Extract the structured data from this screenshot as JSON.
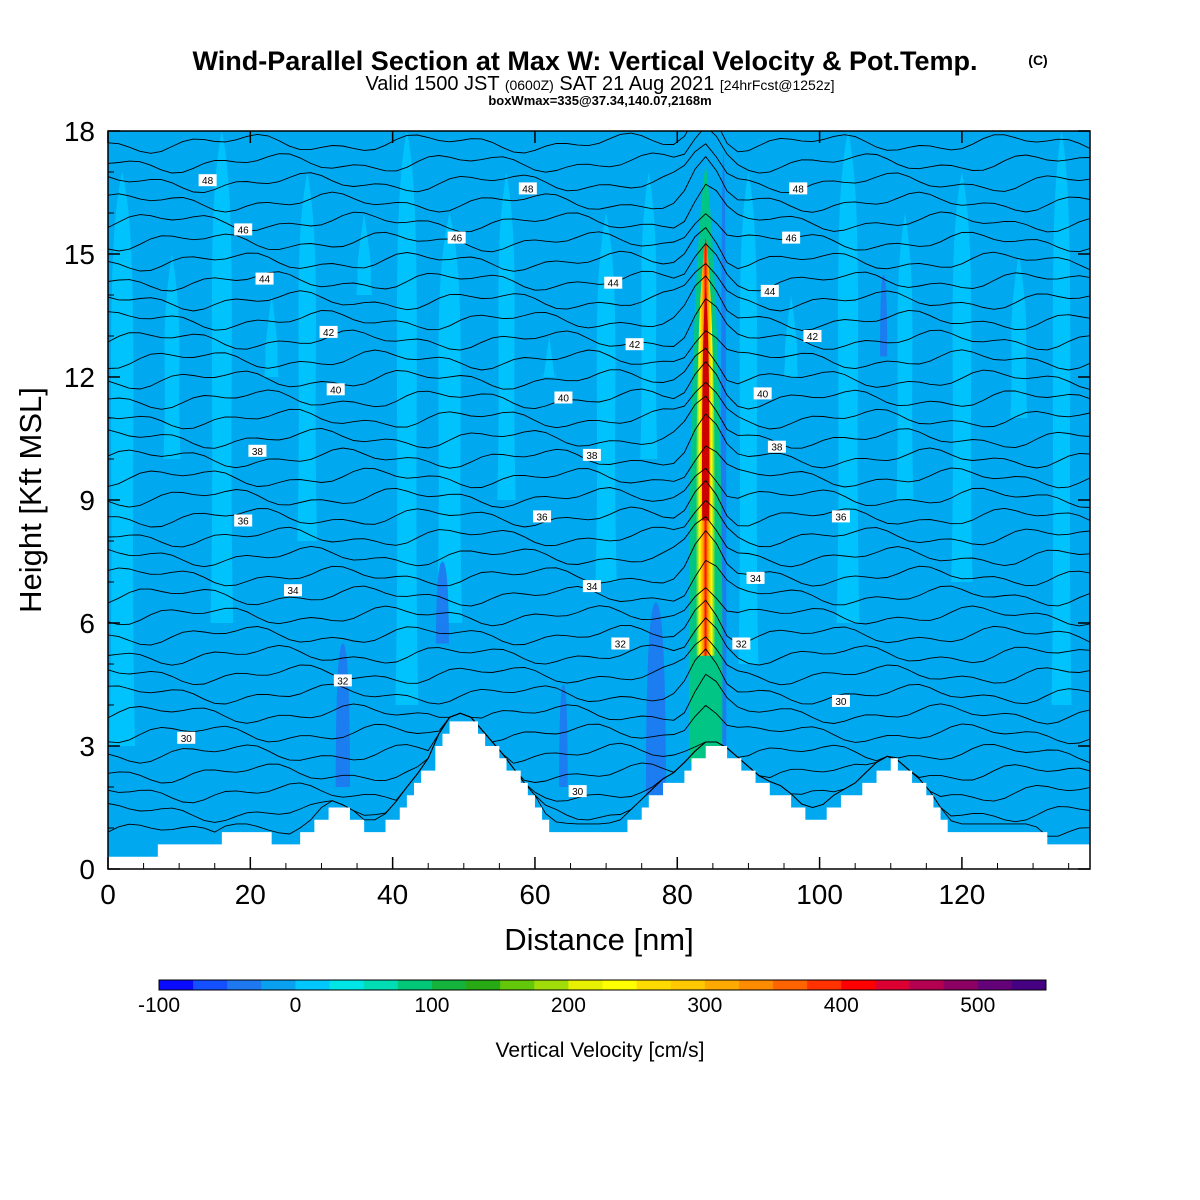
{
  "chart_data": {
    "type": "heatmap",
    "title": "Wind-Parallel Section at Max W: Vertical Velocity & Pot.Temp.",
    "title_mark": "(C)",
    "subtitle": {
      "a": "Valid 1500 JST",
      "b": "(0600Z)",
      "c": "SAT 21 Aug 2021",
      "d": "[24hrFcst@1252z]"
    },
    "subtitle2": "boxWmax=335@37.34,140.07,2168m",
    "xlabel": "Distance [nm]",
    "ylabel": "Height [Kft MSL]",
    "xlim": [
      0,
      138
    ],
    "ylim": [
      0,
      18
    ],
    "x_ticks": [
      "0",
      "20",
      "40",
      "60",
      "80",
      "100",
      "120"
    ],
    "x_tick_values": [
      0,
      20,
      40,
      60,
      80,
      100,
      120
    ],
    "y_ticks": [
      "0",
      "3",
      "6",
      "9",
      "12",
      "15",
      "18"
    ],
    "y_tick_values": [
      0,
      3,
      6,
      9,
      12,
      15,
      18
    ],
    "grid": false,
    "colorbar": {
      "label": "Vertical Velocity [cm/s]",
      "min": -100,
      "max": 575,
      "step": 25,
      "tick_labels": [
        "-100",
        "0",
        "100",
        "200",
        "300",
        "400",
        "500"
      ],
      "tick_values": [
        -100,
        0,
        100,
        200,
        300,
        400,
        500
      ],
      "colors": [
        "#0a0aff",
        "#1450ff",
        "#1e78f0",
        "#0aa0f0",
        "#00c8ff",
        "#00e6e6",
        "#00dcb4",
        "#00c878",
        "#14b43c",
        "#28aa14",
        "#64c80a",
        "#a0dc0a",
        "#e6f000",
        "#ffff00",
        "#ffdc00",
        "#ffc800",
        "#ffaa00",
        "#ff8c00",
        "#ff6400",
        "#ff3200",
        "#ff0000",
        "#dc0032",
        "#b40050",
        "#8c0064",
        "#640078",
        "#460082"
      ]
    },
    "vertical_velocity_field": {
      "background_cm_s": [
        0,
        25
      ],
      "updraft_core_x_nm": 84,
      "updraft_max_cm_s": 500,
      "downdraft_min_cm_s": -75
    },
    "terrain_kft": {
      "x": [
        0,
        14,
        17,
        20,
        25,
        28,
        31,
        34,
        36,
        38,
        40,
        41,
        43,
        45,
        46,
        47,
        48,
        49,
        50,
        51,
        52,
        53,
        54,
        55,
        56,
        58,
        60,
        62,
        64,
        66,
        68,
        70,
        72,
        75,
        78,
        80,
        82,
        84,
        86,
        88,
        90,
        92,
        95,
        98,
        100,
        102,
        105,
        108,
        110,
        112,
        114,
        116,
        118,
        120,
        122,
        124,
        126,
        128,
        130,
        132,
        134,
        136,
        138
      ],
      "y": [
        0.3,
        0.6,
        0.9,
        0.9,
        0.6,
        0.9,
        1.5,
        1.3,
        1.0,
        1.0,
        1.3,
        1.6,
        2.0,
        2.5,
        3.0,
        3.2,
        3.5,
        3.6,
        3.6,
        3.5,
        3.3,
        3.1,
        2.9,
        2.7,
        2.5,
        2.0,
        1.6,
        1.0,
        0.9,
        0.9,
        0.9,
        0.9,
        1.0,
        1.5,
        2.0,
        2.2,
        2.6,
        2.9,
        2.9,
        2.6,
        2.3,
        2.0,
        1.8,
        1.3,
        1.3,
        1.6,
        1.9,
        2.4,
        2.6,
        2.3,
        2.0,
        1.6,
        1.0,
        0.9,
        0.9,
        0.9,
        0.9,
        0.9,
        0.9,
        0.6,
        0.6,
        0.6,
        0.6
      ]
    },
    "theta_contours": [
      {
        "label": "30",
        "label_positions": [
          [
            11,
            3.2
          ],
          [
            66,
            1.9
          ],
          [
            103,
            4.1
          ]
        ]
      },
      {
        "label": "32",
        "label_positions": [
          [
            33,
            4.6
          ],
          [
            72,
            5.5
          ],
          [
            89,
            5.5
          ]
        ]
      },
      {
        "label": "34",
        "label_positions": [
          [
            26,
            6.8
          ],
          [
            68,
            6.9
          ],
          [
            91,
            7.1
          ]
        ]
      },
      {
        "label": "36",
        "label_positions": [
          [
            19,
            8.5
          ],
          [
            61,
            8.6
          ],
          [
            103,
            8.6
          ]
        ]
      },
      {
        "label": "38",
        "label_positions": [
          [
            21,
            10.2
          ],
          [
            68,
            10.1
          ],
          [
            94,
            10.3
          ]
        ]
      },
      {
        "label": "40",
        "label_positions": [
          [
            32,
            11.7
          ],
          [
            64,
            11.5
          ],
          [
            92,
            11.6
          ]
        ]
      },
      {
        "label": "42",
        "label_positions": [
          [
            31,
            13.1
          ],
          [
            74,
            12.8
          ],
          [
            99,
            13.0
          ]
        ]
      },
      {
        "label": "44",
        "label_positions": [
          [
            22,
            14.4
          ],
          [
            71,
            14.3
          ],
          [
            93,
            14.1
          ]
        ]
      },
      {
        "label": "46",
        "label_positions": [
          [
            19,
            15.6
          ],
          [
            49,
            15.4
          ],
          [
            96,
            15.4
          ]
        ]
      },
      {
        "label": "48",
        "label_positions": [
          [
            14,
            16.8
          ],
          [
            59,
            16.6
          ],
          [
            97,
            16.6
          ]
        ]
      }
    ]
  }
}
